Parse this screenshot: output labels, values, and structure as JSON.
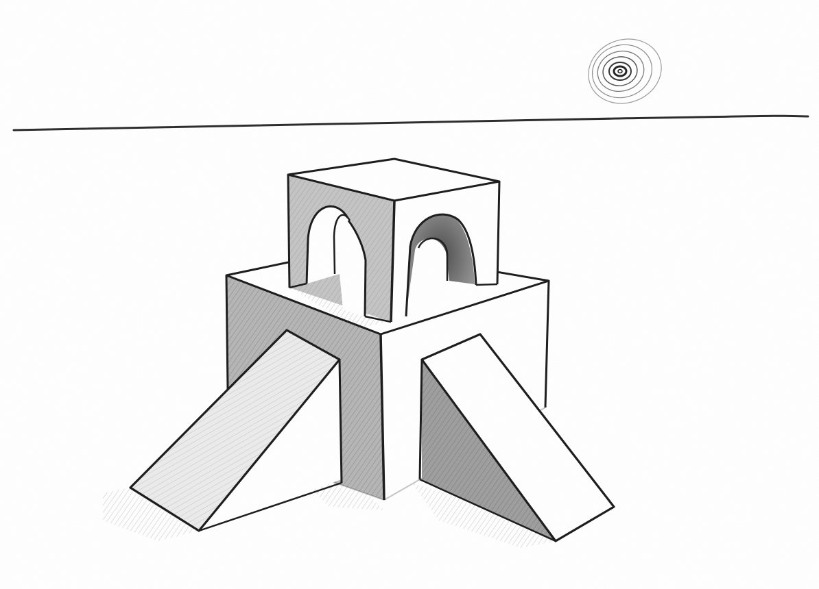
{
  "colors": {
    "paper": "#ffffff",
    "graphite_line": "#1a1a1a",
    "shade_dark": "#7d7d7d",
    "shade_mid": "#a9a9a9",
    "shade_light": "#d3d3d3",
    "sun_ring": "#8a8a8a"
  },
  "elements": {
    "horizon": "horizon-line",
    "sun": "sun-spiral",
    "base_block": "base-block",
    "top_cube": "arched-cube",
    "left_ramp": "left-ramp",
    "right_ramp": "right-ramp"
  }
}
